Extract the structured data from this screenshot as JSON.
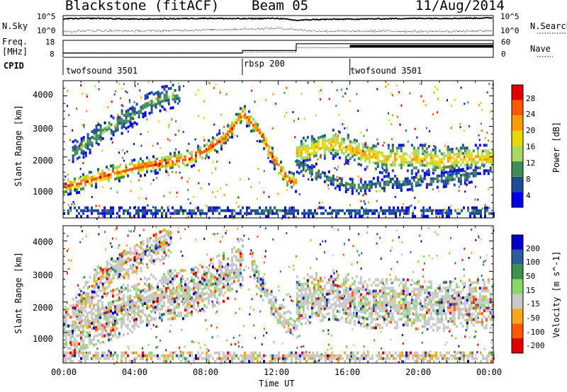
{
  "header": {
    "station": "Blackstone (fitACF)",
    "beam": "Beam 05",
    "date": "11/Aug/2014"
  },
  "time_axis": {
    "ticks": [
      "00:00",
      "04:00",
      "08:00",
      "12:00",
      "16:00",
      "20:00",
      "00:00"
    ],
    "title": "Time UT"
  },
  "noise_panel": {
    "left_label": "N.Sky",
    "right_label": "N.Search",
    "tick_top": "10^5",
    "tick_bottom": "10^0"
  },
  "freq_panel": {
    "left_label": "Freq.",
    "left_unit": "[MHz]",
    "left_ticks": [
      "18",
      "8"
    ],
    "right_label": "Nave",
    "right_ticks": [
      "60",
      "0"
    ]
  },
  "cpid": {
    "label": "CPID",
    "segments": [
      {
        "name": "twofsound 3501",
        "start_hour": 0,
        "end_hour": 10
      },
      {
        "name": "rbsp 200",
        "start_hour": 10,
        "end_hour": 16
      },
      {
        "name": "twofsound 3501",
        "start_hour": 16,
        "end_hour": 24
      }
    ]
  },
  "power_panel": {
    "ylabel": "Slant Range [km]",
    "yticks": [
      "4000",
      "3000",
      "2000",
      "1000"
    ],
    "colorbar_label": "Power [dB]",
    "colorbar_ticks": [
      "28",
      "24",
      "20",
      "16",
      "12",
      "8",
      "4"
    ],
    "colors": [
      "#e00000",
      "#ff5a00",
      "#ff9a00",
      "#e8d800",
      "#a8d860",
      "#408c58",
      "#1c4c98",
      "#0000e8"
    ]
  },
  "velocity_panel": {
    "ylabel": "Slant Range [km]",
    "yticks": [
      "4000",
      "3000",
      "2000",
      "1000"
    ],
    "colorbar_label": "Velocity [m s^-1]",
    "colorbar_ticks": [
      "200",
      "100",
      "50",
      "15",
      "-15",
      "-50",
      "-100",
      "-200"
    ],
    "colors": [
      "#0000c8",
      "#2c5c9c",
      "#3c9050",
      "#88d868",
      "#c8c8c8",
      "#f8a818",
      "#ff5a00",
      "#e00000"
    ]
  },
  "chart_data": [
    {
      "type": "heatmap",
      "name": "power",
      "x_unit": "hours UT",
      "xlim": [
        0,
        24
      ],
      "ylim": [
        0,
        4500
      ],
      "zlim": [
        0,
        30
      ],
      "bands": [
        {
          "x": [
            0,
            1,
            2,
            3,
            4,
            5,
            6,
            7,
            8,
            9,
            10,
            11,
            11.5,
            12,
            12.5,
            13
          ],
          "y": [
            1100,
            1200,
            1400,
            1550,
            1700,
            1800,
            1900,
            2000,
            2300,
            2700,
            3500,
            2800,
            2200,
            1700,
            1300,
            1200
          ],
          "width": 300,
          "peak": 28
        },
        {
          "x": [
            0.5,
            1.5,
            2.5,
            3.5,
            4.5,
            5.5,
            6.5
          ],
          "y": [
            2200,
            2600,
            3000,
            3300,
            3700,
            4000,
            4100
          ],
          "width": 400,
          "peak": 10
        },
        {
          "x": [
            13,
            14,
            15,
            16,
            17,
            18,
            19,
            20,
            21,
            22,
            23,
            24
          ],
          "y": [
            2200,
            2300,
            2500,
            2300,
            2100,
            2000,
            2000,
            2000,
            1900,
            2000,
            2000,
            2000
          ],
          "width": 500,
          "peak": 20
        },
        {
          "x": [
            13,
            14,
            15,
            16,
            17,
            18,
            19,
            20,
            21,
            22,
            23
          ],
          "y": [
            1800,
            1500,
            1300,
            1100,
            1100,
            1200,
            1200,
            1300,
            1300,
            1400,
            1500
          ],
          "width": 250,
          "peak": 8
        },
        {
          "x": [
            0,
            24
          ],
          "y": [
            250,
            250
          ],
          "width": 150,
          "peak": 6
        }
      ]
    },
    {
      "type": "heatmap",
      "name": "velocity",
      "x_unit": "hours UT",
      "xlim": [
        0,
        24
      ],
      "ylim": [
        0,
        4500
      ],
      "zlim": [
        -200,
        200
      ],
      "bands": [
        {
          "x": [
            0,
            1,
            2,
            3,
            4,
            5,
            6,
            7,
            8,
            9,
            10
          ],
          "y": [
            1200,
            1300,
            1500,
            1700,
            1900,
            2200,
            2300,
            2300,
            2600,
            2900,
            3400
          ],
          "width": 800,
          "mean": 0
        },
        {
          "x": [
            10.5,
            11,
            11.5,
            12,
            12.5,
            13
          ],
          "y": [
            3300,
            2600,
            2100,
            1700,
            1400,
            1200
          ],
          "width": 400,
          "mean": 30
        },
        {
          "x": [
            13,
            15,
            17,
            19,
            21,
            23,
            24
          ],
          "y": [
            2100,
            2300,
            2000,
            2000,
            1900,
            2000,
            2000
          ],
          "width": 800,
          "mean": 0
        },
        {
          "x": [
            0.5,
            2,
            3.5,
            5,
            6
          ],
          "y": [
            1800,
            2800,
            3300,
            3800,
            4100
          ],
          "width": 500,
          "mean": -40
        },
        {
          "x": [
            0,
            24
          ],
          "y": [
            250,
            250
          ],
          "width": 150,
          "mean": -60
        }
      ]
    },
    {
      "type": "line",
      "name": "noise",
      "x": [
        0,
        2,
        4,
        6,
        8,
        10,
        12,
        13,
        14,
        16,
        18,
        20,
        22,
        24
      ],
      "series": [
        {
          "name": "N.Sky",
          "values": [
            4.2,
            4.3,
            4.1,
            4.2,
            4.3,
            4.2,
            4.3,
            3.8,
            4.0,
            4.1,
            4.2,
            4.3,
            4.3,
            4.4
          ]
        },
        {
          "name": "N.Search",
          "values": [
            1.0,
            1.2,
            1.1,
            1.2,
            1.4,
            1.6,
            1.8,
            1.5,
            1.1,
            1.0,
            1.1,
            1.0,
            1.0,
            1.1
          ]
        }
      ],
      "ylim": [
        0,
        5
      ]
    },
    {
      "type": "line",
      "name": "frequency_nave",
      "x": [
        0,
        10,
        10.01,
        13,
        13.01,
        16,
        16.01,
        24
      ],
      "series": [
        {
          "name": "Freq.",
          "values": [
            10.5,
            10.5,
            12,
            12,
            16,
            16,
            16,
            16
          ]
        },
        {
          "name": "Nave",
          "values": [
            16,
            16,
            18,
            18,
            34,
            34,
            40,
            40
          ]
        }
      ],
      "ylim_freq": [
        8,
        18
      ],
      "ylim_nave": [
        0,
        60
      ]
    }
  ]
}
